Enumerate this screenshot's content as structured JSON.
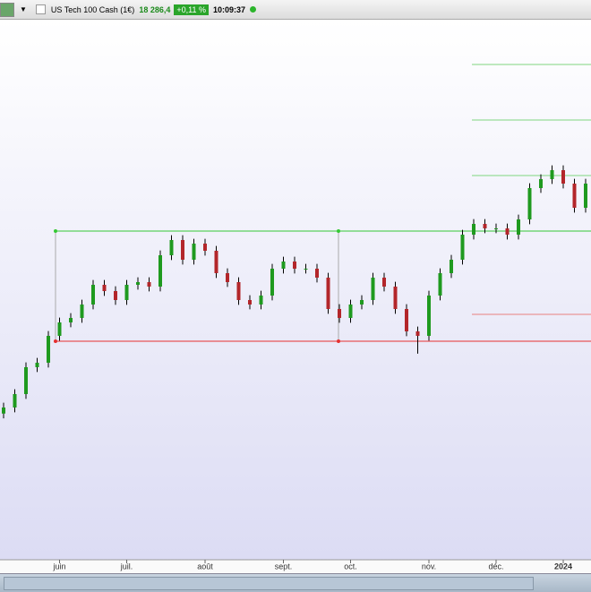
{
  "header": {
    "instrument": "US Tech 100 Cash (1€)",
    "price": "18 286,4",
    "change": "+0,11 %",
    "time": "10:09:37"
  },
  "chart_data": {
    "type": "candlestick",
    "categories": [
      null,
      null,
      null,
      null,
      null,
      "juin",
      null,
      null,
      null,
      null,
      null,
      "juil.",
      null,
      null,
      null,
      null,
      null,
      null,
      "août",
      null,
      null,
      null,
      null,
      null,
      null,
      "sept.",
      null,
      null,
      null,
      null,
      null,
      "oct.",
      null,
      null,
      null,
      null,
      null,
      null,
      "nov.",
      null,
      null,
      null,
      null,
      null,
      "déc.",
      null,
      null,
      null,
      null,
      null,
      "2024",
      null,
      null
    ],
    "open": [
      13250,
      13338,
      13533,
      13923,
      13988,
      14378,
      14573,
      14638,
      14833,
      15119,
      15028,
      14898,
      15119,
      15158,
      15093,
      15548,
      15769,
      15483,
      15717,
      15613,
      15288,
      15158,
      14898,
      14833,
      14963,
      15353,
      15457,
      15353,
      15353,
      15223,
      14768,
      14638,
      14833,
      14898,
      15223,
      15093,
      14768,
      14443,
      14378,
      14963,
      15288,
      15483,
      15847,
      16003,
      15938,
      15938,
      15847,
      16068,
      16523,
      16653,
      16783,
      16588,
      16237
    ],
    "high": [
      13408,
      13603,
      13993,
      14058,
      14448,
      14643,
      14708,
      14903,
      15189,
      15189,
      15098,
      15189,
      15228,
      15228,
      15618,
      15839,
      15839,
      15787,
      15787,
      15683,
      15358,
      15228,
      14968,
      15033,
      15423,
      15527,
      15527,
      15423,
      15423,
      15293,
      14838,
      14903,
      14968,
      15293,
      15293,
      15163,
      14838,
      14513,
      15033,
      15358,
      15553,
      15917,
      16073,
      16073,
      16008,
      16008,
      16138,
      16593,
      16723,
      16853,
      16853,
      16658,
      16658
    ],
    "low": [
      13180,
      13268,
      13463,
      13853,
      13918,
      14308,
      14503,
      14568,
      14763,
      14958,
      14828,
      14828,
      15049,
      15023,
      15023,
      15478,
      15413,
      15413,
      15543,
      15218,
      15088,
      14828,
      14763,
      14763,
      14893,
      15283,
      15283,
      15283,
      15153,
      14698,
      14568,
      14568,
      14763,
      14828,
      15023,
      14698,
      14373,
      14120,
      14308,
      14893,
      15218,
      15413,
      15777,
      15868,
      15868,
      15777,
      15777,
      15998,
      16453,
      16583,
      16518,
      16167,
      16167
    ],
    "close": [
      13338,
      13533,
      13923,
      13988,
      14378,
      14573,
      14638,
      14833,
      15119,
      15028,
      14898,
      15119,
      15158,
      15093,
      15548,
      15769,
      15483,
      15717,
      15613,
      15288,
      15158,
      14898,
      14833,
      14963,
      15353,
      15457,
      15353,
      15353,
      15223,
      14768,
      14638,
      14833,
      14898,
      15223,
      15093,
      14768,
      14443,
      14378,
      14963,
      15288,
      15483,
      15847,
      16003,
      15938,
      15938,
      15847,
      16068,
      16523,
      16653,
      16783,
      16588,
      16237,
      16588
    ],
    "up_color": "#1f9a1f",
    "down_color": "#b3262a",
    "ylim": [
      11128,
      18967
    ],
    "range": {
      "high": 15899,
      "low": 14300,
      "high_color": "#35c935",
      "low_color": "#e53030"
    },
    "levels": [
      {
        "value": 18317,
        "color": "#7fd67f"
      },
      {
        "value": 17511,
        "color": "#7fd67f"
      },
      {
        "value": 16705,
        "color": "#7fd67f"
      },
      {
        "value": 14690,
        "color": "#e88080"
      }
    ]
  }
}
